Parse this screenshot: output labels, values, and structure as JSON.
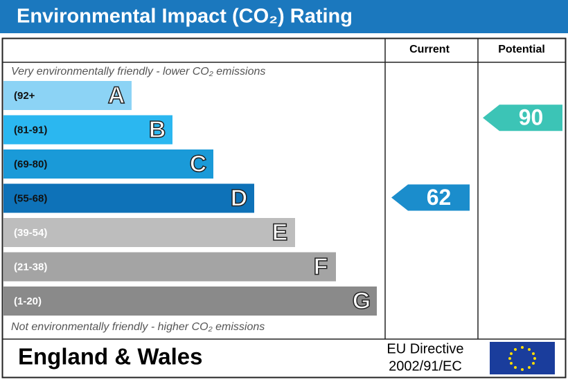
{
  "chart_data": {
    "type": "epc",
    "title": "Environmental Impact (CO₂) Rating",
    "top_note": "Very environmentally friendly - lower CO₂ emissions",
    "bottom_note": "Not environmentally friendly - higher CO₂ emissions",
    "columns": [
      "Current",
      "Potential"
    ],
    "bands": [
      {
        "letter": "A",
        "range": "(92+",
        "color": "#8cd3f5"
      },
      {
        "letter": "B",
        "range": "(81-91)",
        "color": "#2bb7f0"
      },
      {
        "letter": "C",
        "range": "(69-80)",
        "color": "#1a9ad8"
      },
      {
        "letter": "D",
        "range": "(55-68)",
        "color": "#0e72b8"
      },
      {
        "letter": "E",
        "range": "(39-54)",
        "color": "#bdbdbd"
      },
      {
        "letter": "F",
        "range": "(21-38)",
        "color": "#a4a4a4"
      },
      {
        "letter": "G",
        "range": "(1-20)",
        "color": "#8a8a8a"
      }
    ],
    "ratings": [
      {
        "name": "Current",
        "value": 62,
        "color": "#1b8dcc"
      },
      {
        "name": "Potential",
        "value": 90,
        "color": "#3cc4b6"
      }
    ],
    "footer": {
      "region": "England & Wales",
      "directive": "EU Directive",
      "code": "2002/91/EC"
    }
  }
}
